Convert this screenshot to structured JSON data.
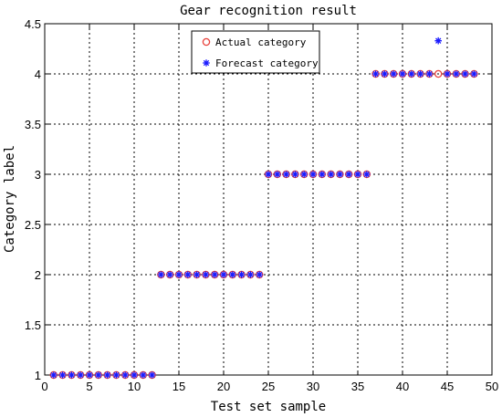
{
  "chart_data": {
    "type": "scatter",
    "title": "Gear recognition result",
    "xlabel": "Test set sample",
    "ylabel": "Category label",
    "xlim": [
      0,
      50
    ],
    "ylim": [
      1,
      4.5
    ],
    "xticks": [
      0,
      5,
      10,
      15,
      20,
      25,
      30,
      35,
      40,
      45,
      50
    ],
    "yticks": [
      1,
      1.5,
      2,
      2.5,
      3,
      3.5,
      4,
      4.5
    ],
    "xtick_labels": [
      "0",
      "5",
      "10",
      "15",
      "20",
      "25",
      "30",
      "35",
      "40",
      "45",
      "50"
    ],
    "ytick_labels": [
      "1",
      "1.5",
      "2",
      "2.5",
      "3",
      "3.5",
      "4",
      "4.5"
    ],
    "grid": true,
    "legend_position": "top-center",
    "series": [
      {
        "name": "Actual category",
        "marker": "circle",
        "color": "#e8403a",
        "x": [
          1,
          2,
          3,
          4,
          5,
          6,
          7,
          8,
          9,
          10,
          11,
          12,
          13,
          14,
          15,
          16,
          17,
          18,
          19,
          20,
          21,
          22,
          23,
          24,
          25,
          26,
          27,
          28,
          29,
          30,
          31,
          32,
          33,
          34,
          35,
          36,
          37,
          38,
          39,
          40,
          41,
          42,
          43,
          44,
          45,
          46,
          47,
          48
        ],
        "y": [
          1,
          1,
          1,
          1,
          1,
          1,
          1,
          1,
          1,
          1,
          1,
          1,
          2,
          2,
          2,
          2,
          2,
          2,
          2,
          2,
          2,
          2,
          2,
          2,
          3,
          3,
          3,
          3,
          3,
          3,
          3,
          3,
          3,
          3,
          3,
          3,
          4,
          4,
          4,
          4,
          4,
          4,
          4,
          4,
          4,
          4,
          4,
          4
        ]
      },
      {
        "name": "Forecast category",
        "marker": "star",
        "color": "#1a1aff",
        "x": [
          1,
          2,
          3,
          4,
          5,
          6,
          7,
          8,
          9,
          10,
          11,
          12,
          13,
          14,
          15,
          16,
          17,
          18,
          19,
          20,
          21,
          22,
          23,
          24,
          25,
          26,
          27,
          28,
          29,
          30,
          31,
          32,
          33,
          34,
          35,
          36,
          37,
          38,
          39,
          40,
          41,
          42,
          43,
          44,
          45,
          46,
          47,
          48
        ],
        "y": [
          1,
          1,
          1,
          1,
          1,
          1,
          1,
          1,
          1,
          1,
          1,
          1,
          2,
          2,
          2,
          2,
          2,
          2,
          2,
          2,
          2,
          2,
          2,
          2,
          3,
          3,
          3,
          3,
          3,
          3,
          3,
          3,
          3,
          3,
          3,
          3,
          4,
          4,
          4,
          4,
          4,
          4,
          4,
          4.33,
          4,
          4,
          4,
          4
        ]
      }
    ]
  }
}
